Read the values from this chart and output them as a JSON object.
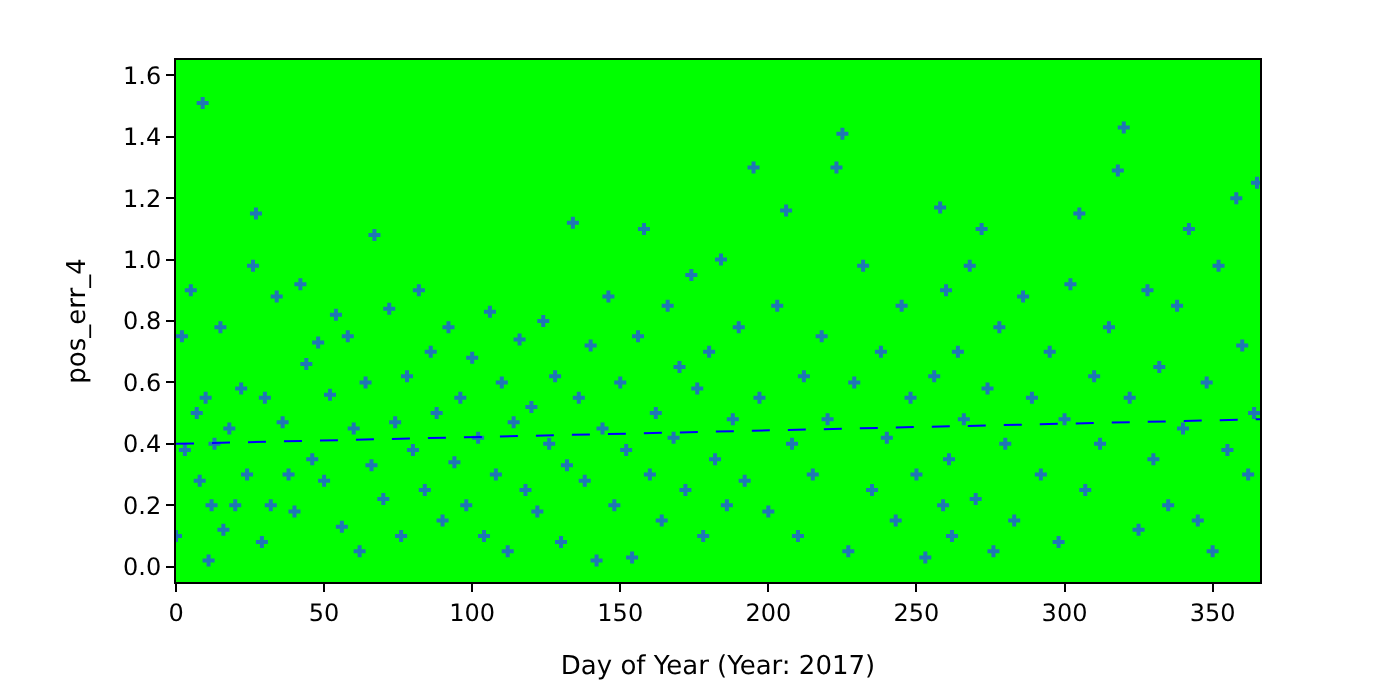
{
  "chart_data": {
    "type": "scatter",
    "xlabel": "Day of Year (Year: 2017)",
    "ylabel": "pos_err_4",
    "xlim": [
      0,
      366
    ],
    "ylim": [
      -0.05,
      1.65
    ],
    "xticks": [
      0,
      50,
      100,
      150,
      200,
      250,
      300,
      350
    ],
    "yticks": [
      {
        "value": 0,
        "label": "0.0"
      },
      {
        "value": 0.2,
        "label": "0.2"
      },
      {
        "value": 0.4,
        "label": "0.4"
      },
      {
        "value": 0.6,
        "label": "0.6"
      },
      {
        "value": 0.8,
        "label": "0.8"
      },
      {
        "value": 1.0,
        "label": "1.0"
      },
      {
        "value": 1.2,
        "label": "1.2"
      },
      {
        "value": 1.4,
        "label": "1.4"
      },
      {
        "value": 1.6,
        "label": "1.6"
      }
    ],
    "grid": false,
    "series": [
      {
        "marker": "cross",
        "color": "#1f77b4",
        "x": [
          0,
          2,
          3,
          5,
          7,
          8,
          9,
          10,
          11,
          12,
          13,
          15,
          16,
          18,
          20,
          22,
          24,
          26,
          27,
          29,
          30,
          32,
          34,
          36,
          38,
          40,
          42,
          44,
          46,
          48,
          50,
          52,
          54,
          56,
          58,
          60,
          62,
          64,
          66,
          67,
          70,
          72,
          74,
          76,
          78,
          80,
          82,
          84,
          86,
          88,
          90,
          92,
          94,
          96,
          98,
          100,
          102,
          104,
          106,
          108,
          110,
          112,
          114,
          116,
          118,
          120,
          122,
          124,
          126,
          128,
          130,
          132,
          134,
          136,
          138,
          140,
          142,
          144,
          146,
          148,
          150,
          152,
          154,
          156,
          158,
          160,
          162,
          164,
          166,
          168,
          170,
          172,
          174,
          176,
          178,
          180,
          182,
          184,
          186,
          188,
          190,
          192,
          195,
          197,
          200,
          203,
          206,
          208,
          210,
          212,
          215,
          218,
          220,
          223,
          225,
          227,
          229,
          232,
          235,
          238,
          240,
          243,
          245,
          248,
          250,
          253,
          256,
          258,
          259,
          260,
          261,
          262,
          264,
          266,
          268,
          270,
          272,
          274,
          276,
          278,
          280,
          283,
          286,
          289,
          292,
          295,
          298,
          300,
          302,
          305,
          307,
          310,
          312,
          315,
          318,
          320,
          322,
          325,
          328,
          330,
          332,
          335,
          338,
          340,
          342,
          345,
          348,
          350,
          352,
          355,
          358,
          360,
          362,
          364,
          365
        ],
        "values": [
          0.1,
          0.75,
          0.38,
          0.9,
          0.5,
          0.28,
          1.51,
          0.55,
          0.02,
          0.2,
          0.4,
          0.78,
          0.12,
          0.45,
          0.2,
          0.58,
          0.3,
          0.98,
          1.15,
          0.08,
          0.55,
          0.2,
          0.88,
          0.47,
          0.3,
          0.18,
          0.92,
          0.66,
          0.35,
          0.73,
          0.28,
          0.56,
          0.82,
          0.13,
          0.75,
          0.45,
          0.05,
          0.6,
          0.33,
          1.08,
          0.22,
          0.84,
          0.47,
          0.1,
          0.62,
          0.38,
          0.9,
          0.25,
          0.7,
          0.5,
          0.15,
          0.78,
          0.34,
          0.55,
          0.2,
          0.68,
          0.42,
          0.1,
          0.83,
          0.3,
          0.6,
          0.05,
          0.47,
          0.74,
          0.25,
          0.52,
          0.18,
          0.8,
          0.4,
          0.62,
          0.08,
          0.33,
          1.12,
          0.55,
          0.28,
          0.72,
          0.02,
          0.45,
          0.88,
          0.2,
          0.6,
          0.38,
          0.03,
          0.75,
          1.1,
          0.3,
          0.5,
          0.15,
          0.85,
          0.42,
          0.65,
          0.25,
          0.95,
          0.58,
          0.1,
          0.7,
          0.35,
          1.0,
          0.2,
          0.48,
          0.78,
          0.28,
          1.3,
          0.55,
          0.18,
          0.85,
          1.16,
          0.4,
          0.1,
          0.62,
          0.3,
          0.75,
          0.48,
          1.3,
          1.41,
          0.05,
          0.6,
          0.98,
          0.25,
          0.7,
          0.42,
          0.15,
          0.85,
          0.55,
          0.3,
          0.03,
          0.62,
          1.17,
          0.2,
          0.9,
          0.35,
          0.1,
          0.7,
          0.48,
          0.98,
          0.22,
          1.1,
          0.58,
          0.05,
          0.78,
          0.4,
          0.15,
          0.88,
          0.55,
          0.3,
          0.7,
          0.08,
          0.48,
          0.92,
          1.15,
          0.25,
          0.62,
          0.4,
          0.78,
          1.29,
          1.43,
          0.55,
          0.12,
          0.9,
          0.35,
          0.65,
          0.2,
          0.85,
          0.45,
          1.1,
          0.15,
          0.6,
          0.05,
          0.98,
          0.38,
          1.2,
          0.72,
          0.3,
          0.5,
          1.25
        ]
      },
      {
        "type": "line",
        "marker": "none",
        "color": "#0000ff",
        "line_style": "dashed",
        "x": [
          0,
          366
        ],
        "values": [
          0.4,
          0.48
        ]
      }
    ]
  }
}
